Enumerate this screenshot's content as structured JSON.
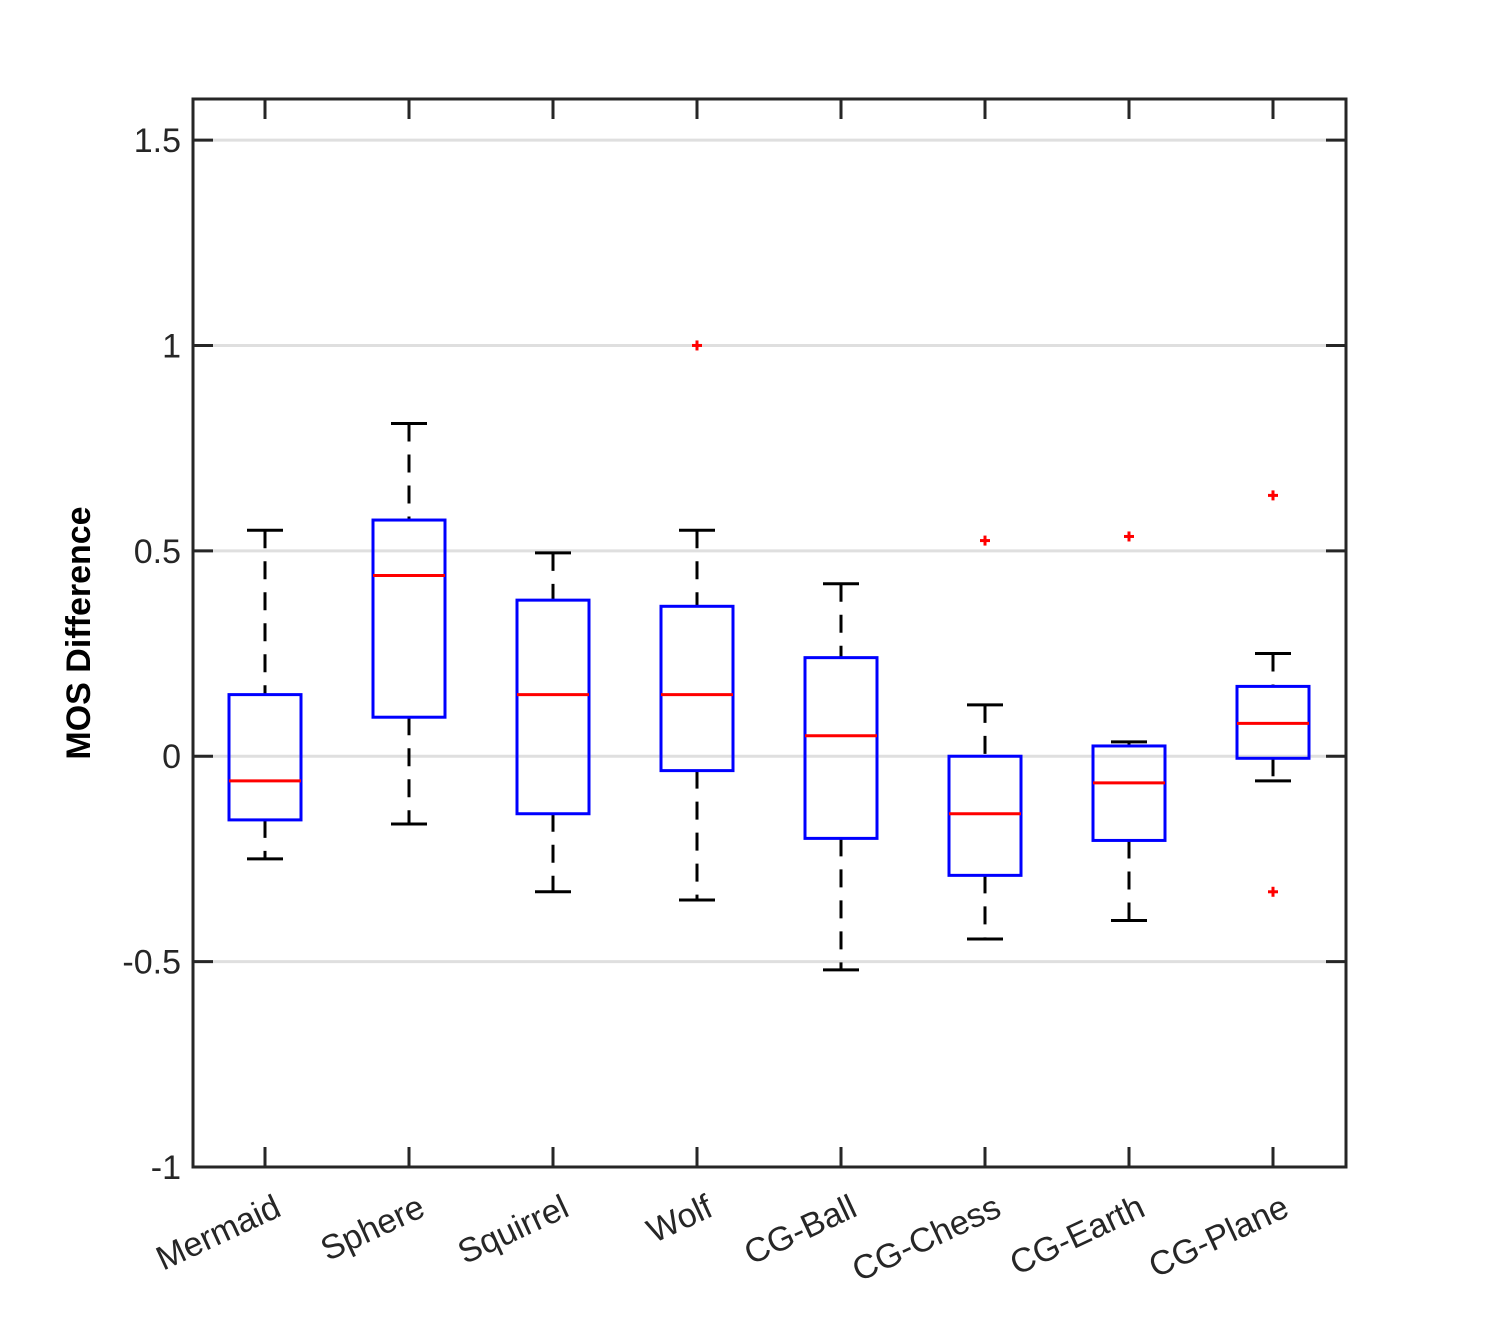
{
  "chart_data": {
    "type": "boxplot",
    "title": "",
    "xlabel": "",
    "ylabel": "MOS Difference",
    "ylim": [
      -1,
      1.6
    ],
    "yticks": [
      -1,
      -0.5,
      0,
      0.5,
      1,
      1.5
    ],
    "ytick_labels": [
      "-1",
      "-0.5",
      "0",
      "0.5",
      "1",
      "1.5"
    ],
    "grid": "horizontal",
    "categories": [
      "Mermaid",
      "Sphere",
      "Squirrel",
      "Wolf",
      "CG-Ball",
      "CG-Chess",
      "CG-Earth",
      "CG-Plane"
    ],
    "boxes": [
      {
        "name": "Mermaid",
        "whisker_low": -0.25,
        "q1": -0.155,
        "median": -0.06,
        "q3": 0.15,
        "whisker_high": 0.55,
        "outliers": []
      },
      {
        "name": "Sphere",
        "whisker_low": -0.165,
        "q1": 0.095,
        "median": 0.44,
        "q3": 0.575,
        "whisker_high": 0.81,
        "outliers": []
      },
      {
        "name": "Squirrel",
        "whisker_low": -0.33,
        "q1": -0.14,
        "median": 0.15,
        "q3": 0.38,
        "whisker_high": 0.495,
        "outliers": []
      },
      {
        "name": "Wolf",
        "whisker_low": -0.35,
        "q1": -0.035,
        "median": 0.15,
        "q3": 0.365,
        "whisker_high": 0.55,
        "outliers": [
          1.0
        ]
      },
      {
        "name": "CG-Ball",
        "whisker_low": -0.52,
        "q1": -0.2,
        "median": 0.05,
        "q3": 0.24,
        "whisker_high": 0.42,
        "outliers": []
      },
      {
        "name": "CG-Chess",
        "whisker_low": -0.445,
        "q1": -0.29,
        "median": -0.14,
        "q3": 0.0,
        "whisker_high": 0.125,
        "outliers": [
          0.525
        ]
      },
      {
        "name": "CG-Earth",
        "whisker_low": -0.4,
        "q1": -0.205,
        "median": -0.065,
        "q3": 0.025,
        "whisker_high": 0.035,
        "outliers": [
          0.535
        ]
      },
      {
        "name": "CG-Plane",
        "whisker_low": -0.06,
        "q1": -0.005,
        "median": 0.08,
        "q3": 0.17,
        "whisker_high": 0.25,
        "outliers": [
          0.635,
          -0.33
        ]
      }
    ],
    "colors": {
      "box": "#0000ff",
      "median": "#ff0000",
      "whisker": "#000000",
      "outlier": "#ff0000",
      "grid": "#dfdfdf",
      "axis": "#262626"
    }
  }
}
